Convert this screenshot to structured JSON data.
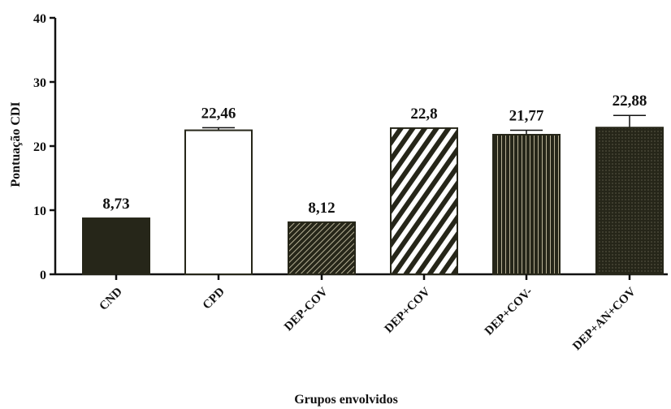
{
  "chart_data": {
    "type": "bar",
    "title": "",
    "xlabel": "Grupos envolvidos",
    "ylabel": "Pontuação  CDI",
    "ylim": [
      0,
      40
    ],
    "yticks": [
      0,
      10,
      20,
      30,
      40
    ],
    "grid": false,
    "categories": [
      "CND",
      "CPD",
      "DEP-COV",
      "DEP+COV",
      "DEP+COV-",
      "DEP+AN+COV"
    ],
    "values": [
      8.73,
      22.46,
      8.12,
      22.8,
      21.77,
      22.88
    ],
    "value_labels": [
      "8,73",
      "22,46",
      "8,12",
      "22,8",
      "21,77",
      "22,88"
    ],
    "errors": [
      0,
      0.4,
      0,
      0,
      0.7,
      1.9
    ],
    "patterns": [
      "solid-dark",
      "open-white",
      "diagonal-dense",
      "diagonal-wide",
      "vertical-lines",
      "dots-dark"
    ],
    "colors": {
      "dark": "#262619",
      "pattern_light": "#d9d2b4",
      "axis": "#111111"
    }
  }
}
